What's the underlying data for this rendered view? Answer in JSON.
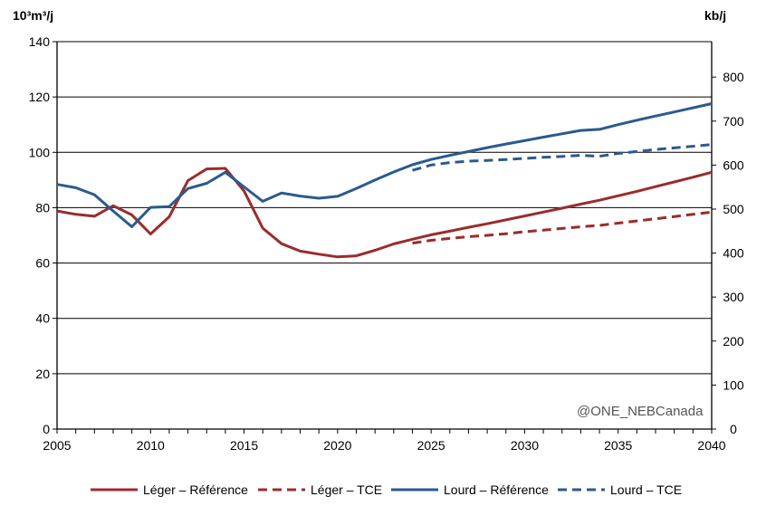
{
  "chart_data": {
    "type": "line",
    "title": "",
    "ylabel_left": "10³m³/j",
    "ylabel_right": "kb/j",
    "xlim": [
      2005,
      2040
    ],
    "ylim_left": [
      0,
      140
    ],
    "ylim_right": [
      0,
      880.6
    ],
    "x_ticks": [
      "2005",
      "2010",
      "2015",
      "2020",
      "2025",
      "2030",
      "2035",
      "2040"
    ],
    "y_ticks_left": [
      "0",
      "20",
      "40",
      "60",
      "80",
      "100",
      "120",
      "140"
    ],
    "y_ticks_right": [
      "0",
      "100",
      "200",
      "300",
      "400",
      "500",
      "600",
      "700",
      "800"
    ],
    "grid": true,
    "watermark": "@ONE_NEBCanada",
    "x": [
      2005,
      2006,
      2007,
      2008,
      2009,
      2010,
      2011,
      2012,
      2013,
      2014,
      2015,
      2016,
      2017,
      2018,
      2019,
      2020,
      2021,
      2022,
      2023,
      2024,
      2025,
      2026,
      2027,
      2028,
      2029,
      2030,
      2031,
      2032,
      2033,
      2034,
      2035,
      2036,
      2037,
      2038,
      2039,
      2040
    ],
    "series": [
      {
        "name": "Léger – Référence",
        "color": "#9b2c2c",
        "dash": "solid",
        "values": [
          78.8,
          77.6,
          76.9,
          80.7,
          77.4,
          70.5,
          76.7,
          89.8,
          94.0,
          94.2,
          86.0,
          72.6,
          67.0,
          64.3,
          63.2,
          62.2,
          62.6,
          64.6,
          66.9,
          68.6,
          70.2,
          71.5,
          72.9,
          74.2,
          75.6,
          77.0,
          78.4,
          79.8,
          81.3,
          82.7,
          84.3,
          85.9,
          87.6,
          89.3,
          91.0,
          92.8
        ]
      },
      {
        "name": "Léger – TCE",
        "color": "#9b2c2c",
        "dash": "dashed",
        "values": [
          null,
          null,
          null,
          null,
          null,
          null,
          null,
          null,
          null,
          null,
          null,
          null,
          null,
          null,
          null,
          null,
          null,
          null,
          null,
          67.2,
          68.2,
          68.9,
          69.5,
          70.0,
          70.6,
          71.3,
          71.9,
          72.5,
          73.1,
          73.6,
          74.4,
          75.2,
          76.0,
          76.8,
          77.6,
          78.4
        ]
      },
      {
        "name": "Lourd – Référence",
        "color": "#2a5a8f",
        "dash": "solid",
        "values": [
          88.4,
          87.2,
          84.7,
          78.8,
          73.1,
          80.1,
          80.4,
          86.9,
          88.8,
          92.8,
          87.5,
          82.3,
          85.3,
          84.2,
          83.4,
          84.1,
          86.9,
          90.0,
          92.9,
          95.5,
          97.4,
          98.9,
          100.3,
          101.7,
          103.0,
          104.2,
          105.5,
          106.7,
          107.9,
          108.3,
          110.0,
          111.6,
          113.1,
          114.6,
          116.1,
          117.6
        ]
      },
      {
        "name": "Lourd – TCE",
        "color": "#2a5a8f",
        "dash": "dashed",
        "values": [
          null,
          null,
          null,
          null,
          null,
          null,
          null,
          null,
          null,
          null,
          null,
          null,
          null,
          null,
          null,
          null,
          null,
          null,
          null,
          93.5,
          95.4,
          96.3,
          96.8,
          97.1,
          97.4,
          97.8,
          98.2,
          98.5,
          98.9,
          98.6,
          99.6,
          100.3,
          101.0,
          101.6,
          102.2,
          102.8
        ]
      }
    ]
  }
}
